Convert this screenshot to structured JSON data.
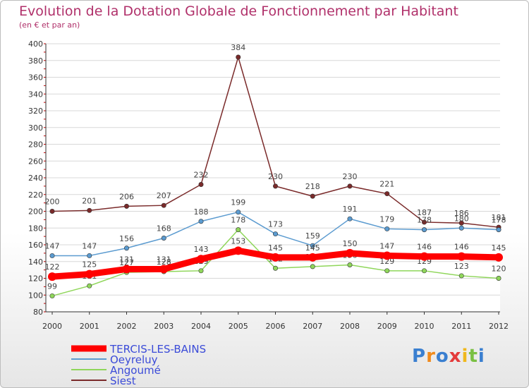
{
  "chart_data": {
    "type": "line",
    "title": "Evolution de la Dotation Globale de Fonctionnement par Habitant",
    "subtitle": "(en € et par an)",
    "xlabel": "",
    "ylabel": "",
    "ylim": [
      80,
      400
    ],
    "yticks": [
      "80",
      "100",
      "120",
      "140",
      "160",
      "180",
      "200",
      "220",
      "240",
      "260",
      "280",
      "300",
      "320",
      "340",
      "360",
      "380",
      "400"
    ],
    "categories": [
      "2000",
      "2001",
      "2002",
      "2003",
      "2004",
      "2005",
      "2006",
      "2007",
      "2008",
      "2009",
      "2010",
      "2011",
      "2012"
    ],
    "grid": "horizontal",
    "legend_position": "bottom-left",
    "series": [
      {
        "name": "Siest",
        "color": "#7a2a2a",
        "values": [
          200,
          201,
          206,
          207,
          232,
          384,
          230,
          218,
          230,
          221,
          187,
          186,
          181
        ],
        "labels": [
          "200",
          "201",
          "206",
          "207",
          "232",
          "384",
          "230",
          "218",
          "230",
          "221",
          "187",
          "186",
          "181"
        ]
      },
      {
        "name": "Oeyreluy",
        "color": "#5b9bd0",
        "values": [
          147,
          147,
          156,
          168,
          188,
          199,
          173,
          159,
          191,
          179,
          178,
          180,
          178
        ],
        "labels": [
          "147",
          "147",
          "156",
          "168",
          "188",
          "199",
          "173",
          "159",
          "191",
          "179",
          "178",
          "180",
          "178"
        ]
      },
      {
        "name": "Angoumé",
        "color": "#8fd65a",
        "values": [
          99,
          111,
          127,
          128,
          129,
          178,
          132,
          134,
          136,
          129,
          129,
          123,
          120
        ],
        "labels": [
          "99",
          "111",
          "127",
          "128",
          "129",
          "178",
          "132",
          "134",
          "136",
          "129",
          "129",
          "123",
          "120"
        ]
      },
      {
        "name": "TERCIS-LES-BAINS",
        "color": "#ff0000",
        "values": [
          122,
          125,
          131,
          131,
          143,
          153,
          145,
          145,
          150,
          147,
          146,
          146,
          145
        ],
        "labels": [
          "122",
          "125",
          "131",
          "131",
          "143",
          "153",
          "145",
          "145",
          "150",
          "147",
          "146",
          "146",
          "145"
        ]
      }
    ],
    "legend": [
      {
        "name": "TERCIS-LES-BAINS",
        "color": "#ff0000",
        "text_color": "#3b4bd8"
      },
      {
        "name": "Oeyreluy",
        "color": "#5b9bd0",
        "text_color": "#3b4bd8"
      },
      {
        "name": "Angoumé",
        "color": "#8fd65a",
        "text_color": "#3b4bd8"
      },
      {
        "name": "Siest",
        "color": "#7a2a2a",
        "text_color": "#3b4bd8"
      }
    ]
  },
  "logo": {
    "text": "Proxiti"
  }
}
